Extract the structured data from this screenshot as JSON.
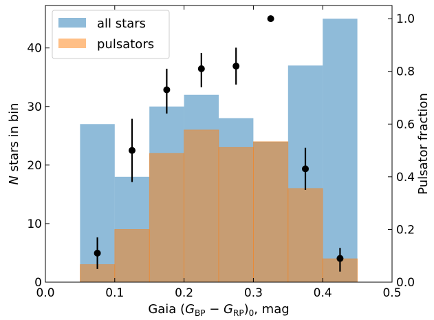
{
  "chart_data": {
    "type": "bar",
    "bins": [
      [
        0.05,
        0.1
      ],
      [
        0.1,
        0.15
      ],
      [
        0.15,
        0.2
      ],
      [
        0.2,
        0.25
      ],
      [
        0.25,
        0.3
      ],
      [
        0.3,
        0.35
      ],
      [
        0.35,
        0.4
      ],
      [
        0.4,
        0.45
      ]
    ],
    "series": [
      {
        "name": "all stars",
        "color": "#1f77b4",
        "values": [
          27,
          18,
          30,
          32,
          28,
          24,
          37,
          45
        ]
      },
      {
        "name": "pulsators",
        "color": "#ff7f0e",
        "values": [
          3,
          9,
          22,
          26,
          23,
          24,
          16,
          4
        ]
      }
    ],
    "fraction_points": {
      "x": [
        0.075,
        0.125,
        0.175,
        0.225,
        0.275,
        0.325,
        0.375,
        0.425
      ],
      "y": [
        0.11,
        0.5,
        0.73,
        0.81,
        0.82,
        1.0,
        0.43,
        0.09
      ],
      "err_low": [
        0.06,
        0.12,
        0.09,
        0.07,
        0.07,
        0.0,
        0.08,
        0.05
      ],
      "err_high": [
        0.06,
        0.12,
        0.08,
        0.06,
        0.07,
        0.0,
        0.08,
        0.04
      ],
      "color": "#000000"
    },
    "xlim": [
      0.0,
      0.5
    ],
    "ylim_left": [
      0,
      47.25
    ],
    "ylim_right": [
      0,
      1.05
    ],
    "x_ticks": [
      "0.0",
      "0.1",
      "0.2",
      "0.3",
      "0.4",
      "0.5"
    ],
    "y_ticks_left": [
      "0",
      "10",
      "20",
      "30",
      "40"
    ],
    "y_ticks_right": [
      "0.0",
      "0.2",
      "0.4",
      "0.6",
      "0.8",
      "1.0"
    ],
    "xlabel": {
      "pre": "Gaia (",
      "g1": "G",
      "s1": "BP",
      "minus": " − ",
      "g2": "G",
      "s2": "RP",
      "post": ")",
      "sub0": "0",
      "tail": ", mag"
    },
    "ylabel_left": {
      "italic": "N",
      "rest": " stars in bin"
    },
    "ylabel_right": "Pulsator fraction",
    "legend": {
      "placement": "top-left",
      "items": [
        "all stars",
        "pulsators"
      ]
    }
  }
}
